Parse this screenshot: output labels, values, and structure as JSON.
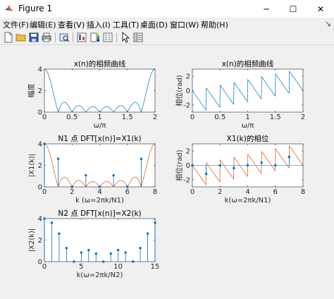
{
  "window": {
    "title": "Figure 1",
    "buttons": {
      "minimize": "─",
      "maximize": "☐",
      "close": "✕"
    }
  },
  "menu": {
    "items": [
      "文件(F)",
      "编辑(E)",
      "查看(V)",
      "插入(I)",
      "工具(T)",
      "桌面(D)",
      "窗口(W)",
      "帮助(H)"
    ],
    "dock_arrow": "↘"
  },
  "toolbar": {
    "icons": [
      "new-file-icon",
      "open-folder-icon",
      "save-icon",
      "print-icon",
      "print-preview-icon",
      "link-plot-icon",
      "colorbar-icon",
      "insert-legend-icon",
      "pointer-icon",
      "property-inspector-icon"
    ]
  },
  "colors": {
    "blue": "#0072bd",
    "orange": "#d95319"
  },
  "chart_data": [
    {
      "id": "plot1",
      "type": "line",
      "title": "x(n)的相频曲线",
      "xlabel": "ω/π",
      "ylabel": "幅度",
      "xlim": [
        0,
        2
      ],
      "ylim": [
        0,
        4
      ],
      "xticks": [
        0,
        0.5,
        1,
        1.5,
        2
      ],
      "xtick_labels": [
        "0",
        "0.5",
        "1",
        "1.5",
        "2"
      ],
      "yticks": [
        0,
        2,
        4
      ],
      "ytick_labels": [
        "0",
        "2",
        "4"
      ],
      "series": [
        {
          "color": "#0072bd",
          "function": "abs_dirichlet_N8_zeros_at_k_over_4"
        }
      ]
    },
    {
      "id": "plot2",
      "type": "line",
      "title": "x(n)的相频曲线",
      "xlabel": "ω/π",
      "ylabel": "相位(rad)",
      "xlim": [
        0,
        2
      ],
      "ylim": [
        -3,
        3
      ],
      "xticks": [
        0,
        0.5,
        1,
        1.5,
        2
      ],
      "xtick_labels": [
        "0",
        "0.5",
        "1",
        "1.5",
        "2"
      ],
      "yticks": [
        -2,
        0,
        2
      ],
      "ytick_labels": [
        "-2",
        "0",
        "2"
      ],
      "series": [
        {
          "color": "#0072bd",
          "function": "wrapped_linear_phase_slope_-3.5pi",
          "jumps_at": [
            0.25,
            0.5,
            1.0,
            1.5,
            1.75
          ]
        }
      ]
    },
    {
      "id": "plot3",
      "type": "stem",
      "title": "N1 点 DFT[x(n)]=X1(k)",
      "xlabel": "k (ω=2πk/N1)",
      "ylabel": "|X1(k)|",
      "xlim": [
        0,
        8
      ],
      "ylim": [
        0,
        4
      ],
      "xticks": [
        0,
        2,
        4,
        6,
        8
      ],
      "xtick_labels": [
        "0",
        "2",
        "4",
        "6",
        "8"
      ],
      "yticks": [
        0,
        2,
        4
      ],
      "ytick_labels": [
        "0",
        "2",
        "4"
      ],
      "stems": {
        "color": "#0072bd",
        "k": [
          0,
          1,
          2,
          3,
          4,
          5,
          6,
          7
        ],
        "values": [
          4,
          2.61,
          0,
          1.08,
          0,
          1.08,
          0,
          2.61
        ]
      },
      "envelope": {
        "color": "#d95319",
        "function": "abs_dirichlet_N8_in_k_units"
      }
    },
    {
      "id": "plot4",
      "type": "stem",
      "title": "X1(k)的相位",
      "xlabel": "k(ω=2πk/N1)",
      "ylabel": "相位(rad)",
      "xlim": [
        0,
        8
      ],
      "ylim": [
        -3,
        3
      ],
      "xticks": [
        0,
        2,
        4,
        6,
        8
      ],
      "xtick_labels": [
        "0",
        "2",
        "4",
        "6",
        "8"
      ],
      "yticks": [
        -2,
        0,
        2
      ],
      "ytick_labels": [
        "-2",
        "0",
        "2"
      ],
      "stems": {
        "color": "#0072bd",
        "k": [
          0,
          1,
          2,
          3,
          4,
          5,
          6,
          7
        ],
        "values": [
          0,
          -1.18,
          0,
          -0.39,
          0,
          0.39,
          0,
          1.18
        ]
      },
      "envelope": {
        "color": "#d95319",
        "function": "wrapped_linear_phase_in_k_units"
      }
    },
    {
      "id": "plot5",
      "type": "stem",
      "title": "N2 点 DFT[x(n)]=X2(k)",
      "xlabel": "k(ω=2πk/N2)",
      "ylabel": "|X2(k)|",
      "xlim": [
        0,
        15
      ],
      "ylim": [
        0,
        4
      ],
      "xticks": [
        0,
        5,
        10,
        15
      ],
      "xtick_labels": [
        "0",
        "5",
        "10",
        "15"
      ],
      "yticks": [
        0,
        2,
        4
      ],
      "ytick_labels": [
        "0",
        "2",
        "4"
      ],
      "stems": {
        "color": "#0072bd",
        "k": [
          0,
          1,
          2,
          3,
          4,
          5,
          6,
          7,
          8,
          9,
          10,
          11,
          12,
          13,
          14,
          15
        ],
        "values": [
          4,
          3.62,
          2.61,
          1.26,
          0,
          0.85,
          1.08,
          0.75,
          0,
          0.75,
          1.08,
          0.85,
          0,
          1.26,
          2.61,
          3.62
        ]
      }
    }
  ]
}
